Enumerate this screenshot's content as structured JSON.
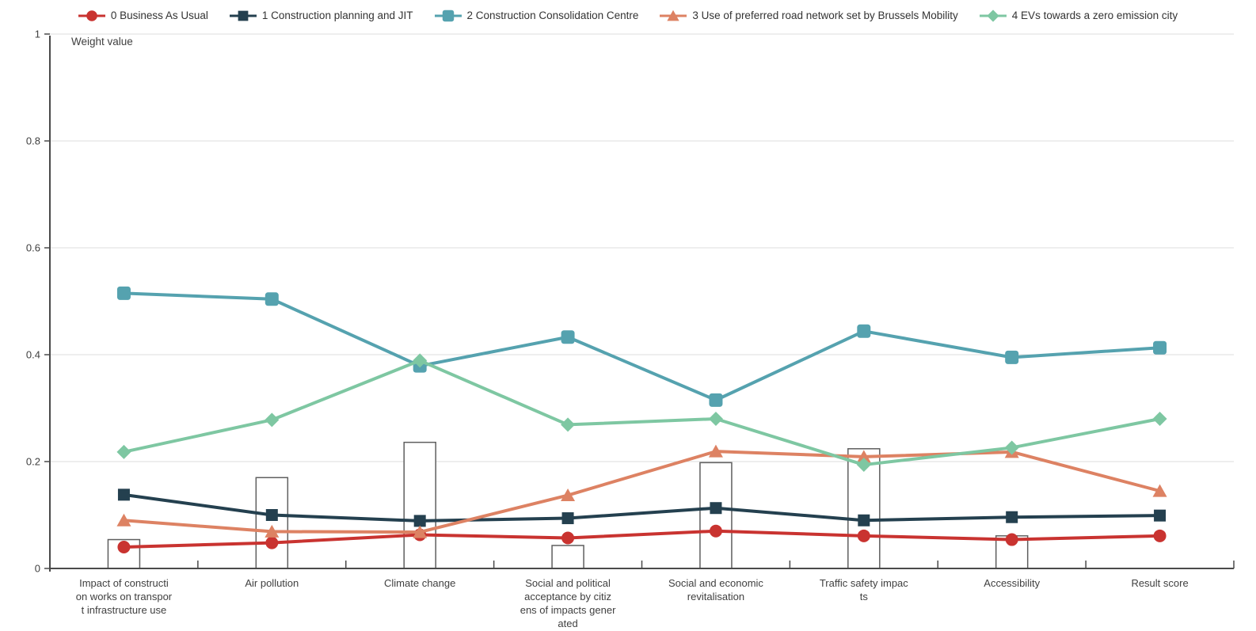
{
  "chart_data": {
    "type": "line",
    "title": "",
    "ylabel_inline": "Weight value",
    "xlabel": "",
    "ylim": [
      0,
      1
    ],
    "grid": true,
    "legend_position": "top",
    "yticks": [
      {
        "label": "0",
        "value": 0
      },
      {
        "label": "0.2",
        "value": 0.2
      },
      {
        "label": "0.4",
        "value": 0.4
      },
      {
        "label": "0.6",
        "value": 0.6
      },
      {
        "label": "0.8",
        "value": 0.8
      },
      {
        "label": "1",
        "value": 1
      }
    ],
    "categories": [
      {
        "label": "Impact of construction works on transport infrastructure use",
        "lines": [
          "Impact of constructi",
          "on works on transpor",
          "t infrastructure use"
        ]
      },
      {
        "label": "Air pollution",
        "lines": [
          "Air pollution"
        ]
      },
      {
        "label": "Climate change",
        "lines": [
          "Climate change"
        ]
      },
      {
        "label": "Social and political acceptance by citizens of impacts generated",
        "lines": [
          "Social and political",
          "acceptance by citiz",
          "ens of impacts gener",
          "ated"
        ]
      },
      {
        "label": "Social and economic revitalisation",
        "lines": [
          "Social and economic",
          "revitalisation"
        ]
      },
      {
        "label": "Traffic safety impacts",
        "lines": [
          "Traffic safety impac",
          "ts"
        ]
      },
      {
        "label": "Accessibility",
        "lines": [
          "Accessibility"
        ]
      },
      {
        "label": "Result score",
        "lines": [
          "Result score"
        ]
      }
    ],
    "series": [
      {
        "name": "0 Business As Usual",
        "color": "#c93330",
        "marker": "circle",
        "values": [
          0.04,
          0.048,
          0.063,
          0.057,
          0.07,
          0.061,
          0.054,
          0.061
        ]
      },
      {
        "name": "1 Construction planning and JIT",
        "color": "#24404f",
        "marker": "square",
        "values": [
          0.138,
          0.1,
          0.089,
          0.094,
          0.113,
          0.09,
          0.096,
          0.099
        ]
      },
      {
        "name": "2 Construction Consolidation Centre",
        "color": "#55a2af",
        "marker": "square-rounded",
        "values": [
          0.515,
          0.504,
          0.379,
          0.433,
          0.315,
          0.444,
          0.395,
          0.413
        ]
      },
      {
        "name": "3 Use of preferred road network set by Brussels Mobility",
        "color": "#dd8263",
        "marker": "triangle",
        "values": [
          0.09,
          0.069,
          0.068,
          0.137,
          0.219,
          0.209,
          0.218,
          0.145
        ]
      },
      {
        "name": "4 EVs towards a zero emission city",
        "color": "#7ec7a2",
        "marker": "diamond",
        "values": [
          0.218,
          0.278,
          0.389,
          0.269,
          0.28,
          0.194,
          0.226,
          0.28
        ]
      }
    ],
    "bars": {
      "fill": "#ffffff",
      "stroke": "#5f5f5f",
      "width": 40,
      "values": [
        0.054,
        0.17,
        0.236,
        0.043,
        0.198,
        0.224,
        0.061,
        null
      ]
    },
    "colors": {
      "axis": "#4a4a4a",
      "grid": "#dcdcdc",
      "text": "#404040"
    }
  }
}
